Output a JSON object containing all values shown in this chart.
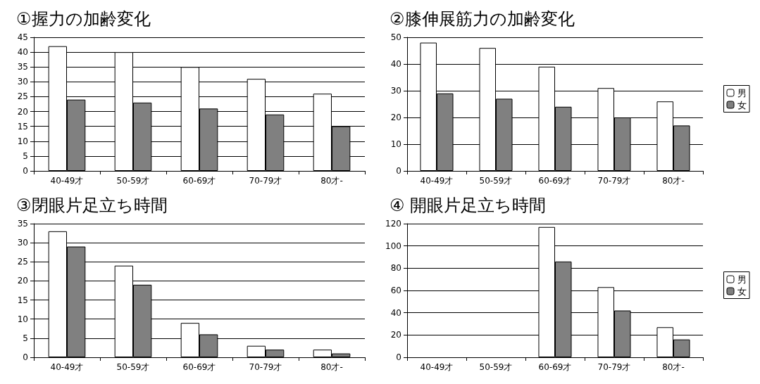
{
  "chart_data": [
    {
      "type": "bar",
      "title": "①握力の加齢変化",
      "categories": [
        "40-49才",
        "50-59才",
        "60-69才",
        "70-79才",
        "80才-"
      ],
      "series": [
        {
          "color": "#ffffff",
          "values": [
            42,
            40,
            35,
            31,
            26
          ]
        },
        {
          "color": "#808080",
          "values": [
            24,
            23,
            21,
            19,
            15
          ]
        }
      ],
      "ylim": [
        0,
        45
      ],
      "yticks": [
        0,
        5,
        10,
        15,
        20,
        25,
        30,
        35,
        40,
        45
      ],
      "grid": "y",
      "legend": false
    },
    {
      "type": "bar",
      "title": "②膝伸展筋力の加齢変化",
      "categories": [
        "40-49才",
        "50-59才",
        "60-69才",
        "70-79才",
        "80才-"
      ],
      "series": [
        {
          "name": "男",
          "color": "#ffffff",
          "values": [
            48,
            46,
            39,
            31,
            26
          ]
        },
        {
          "name": "女",
          "color": "#808080",
          "values": [
            29,
            27,
            24,
            20,
            17
          ]
        }
      ],
      "ylim": [
        0,
        50
      ],
      "yticks": [
        0,
        10,
        20,
        30,
        40,
        50
      ],
      "grid": "y",
      "legend": "right"
    },
    {
      "type": "bar",
      "title": "③閉眼片足立ち時間",
      "categories": [
        "40-49才",
        "50-59才",
        "60-69才",
        "70-79才",
        "80才-"
      ],
      "series": [
        {
          "color": "#ffffff",
          "values": [
            33,
            24,
            9,
            3,
            2
          ]
        },
        {
          "color": "#808080",
          "values": [
            29,
            19,
            6,
            2,
            1
          ]
        }
      ],
      "ylim": [
        0,
        35
      ],
      "yticks": [
        0,
        5,
        10,
        15,
        20,
        25,
        30,
        35
      ],
      "grid": "y",
      "legend": false
    },
    {
      "type": "bar",
      "title": "④ 開眼片足立ち時間",
      "categories": [
        "40-49才",
        "50-59才",
        "60-69才",
        "70-79才",
        "80才-"
      ],
      "series": [
        {
          "name": "男",
          "color": "#ffffff",
          "values": [
            0,
            0,
            117,
            63,
            27
          ]
        },
        {
          "name": "女",
          "color": "#808080",
          "values": [
            0,
            0,
            86,
            42,
            16
          ]
        }
      ],
      "ylim": [
        0,
        120
      ],
      "yticks": [
        0,
        20,
        40,
        60,
        80,
        100,
        120
      ],
      "grid": "y",
      "legend": "right"
    }
  ]
}
